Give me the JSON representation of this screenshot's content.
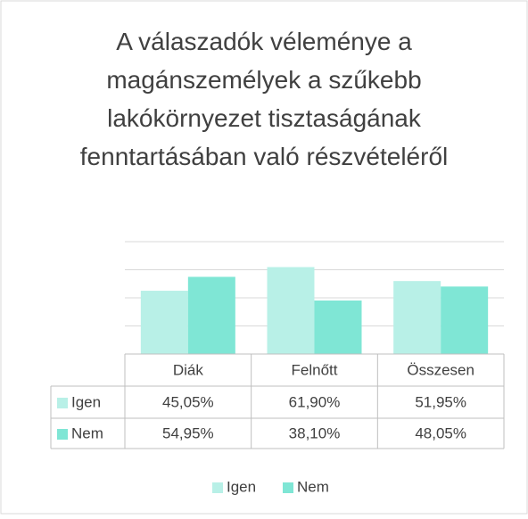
{
  "chart_data": {
    "type": "bar",
    "title": "A válaszadók véleménye a magánszemélyek a szűkebb lakókörnyezet tisztaságának fenntartásában való részvételéről",
    "categories": [
      "Diák",
      "Felnőtt",
      "Összesen"
    ],
    "series": [
      {
        "name": "Igen",
        "color": "#b8f0e7",
        "values": [
          45.05,
          61.9,
          51.95
        ],
        "value_labels": [
          "45,05%",
          "61,90%",
          "51,95%"
        ]
      },
      {
        "name": "Nem",
        "color": "#7fe6d5",
        "values": [
          54.95,
          38.1,
          48.05
        ],
        "value_labels": [
          "54,95%",
          "38,10%",
          "48,05%"
        ]
      }
    ],
    "ylim": [
      0,
      80
    ],
    "yticks": [
      0,
      20,
      40,
      60,
      80
    ],
    "grid": true,
    "legend": "bottom"
  }
}
